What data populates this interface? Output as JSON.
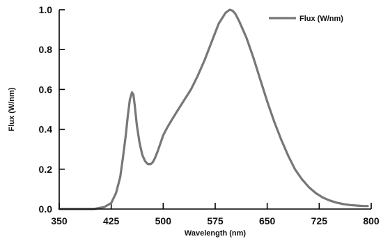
{
  "chart_data": {
    "type": "line",
    "xlabel": "Wavelength (nm)",
    "ylabel": "Flux (W/nm)",
    "xlim": [
      350,
      800
    ],
    "ylim": [
      0.0,
      1.0
    ],
    "x_ticks": [
      "350",
      "425",
      "500",
      "575",
      "650",
      "725",
      "800"
    ],
    "y_ticks": [
      "0.0",
      "0.2",
      "0.4",
      "0.6",
      "0.8",
      "1.0"
    ],
    "legend_position": "top-right",
    "grid": false,
    "series": [
      {
        "name": "Flux (W/nm)",
        "color": "#777777",
        "x": [
          350,
          380,
          400,
          415,
          425,
          432,
          438,
          442,
          446,
          449,
          452,
          455,
          457,
          459,
          462,
          466,
          470,
          474,
          478,
          482,
          485,
          488,
          492,
          496,
          500,
          506,
          512,
          520,
          530,
          540,
          550,
          560,
          570,
          580,
          590,
          596,
          600,
          604,
          610,
          620,
          630,
          640,
          650,
          660,
          670,
          680,
          690,
          700,
          710,
          720,
          730,
          740,
          750,
          760,
          770,
          780,
          790,
          795
        ],
        "y": [
          0.0,
          0.0,
          0.0,
          0.01,
          0.03,
          0.08,
          0.16,
          0.26,
          0.37,
          0.47,
          0.55,
          0.585,
          0.575,
          0.52,
          0.42,
          0.33,
          0.27,
          0.24,
          0.225,
          0.225,
          0.235,
          0.255,
          0.29,
          0.33,
          0.37,
          0.41,
          0.445,
          0.49,
          0.545,
          0.6,
          0.67,
          0.75,
          0.84,
          0.93,
          0.985,
          1.0,
          0.995,
          0.98,
          0.94,
          0.86,
          0.76,
          0.65,
          0.54,
          0.44,
          0.35,
          0.27,
          0.2,
          0.15,
          0.11,
          0.08,
          0.058,
          0.043,
          0.032,
          0.025,
          0.02,
          0.017,
          0.015,
          0.015
        ]
      }
    ]
  }
}
